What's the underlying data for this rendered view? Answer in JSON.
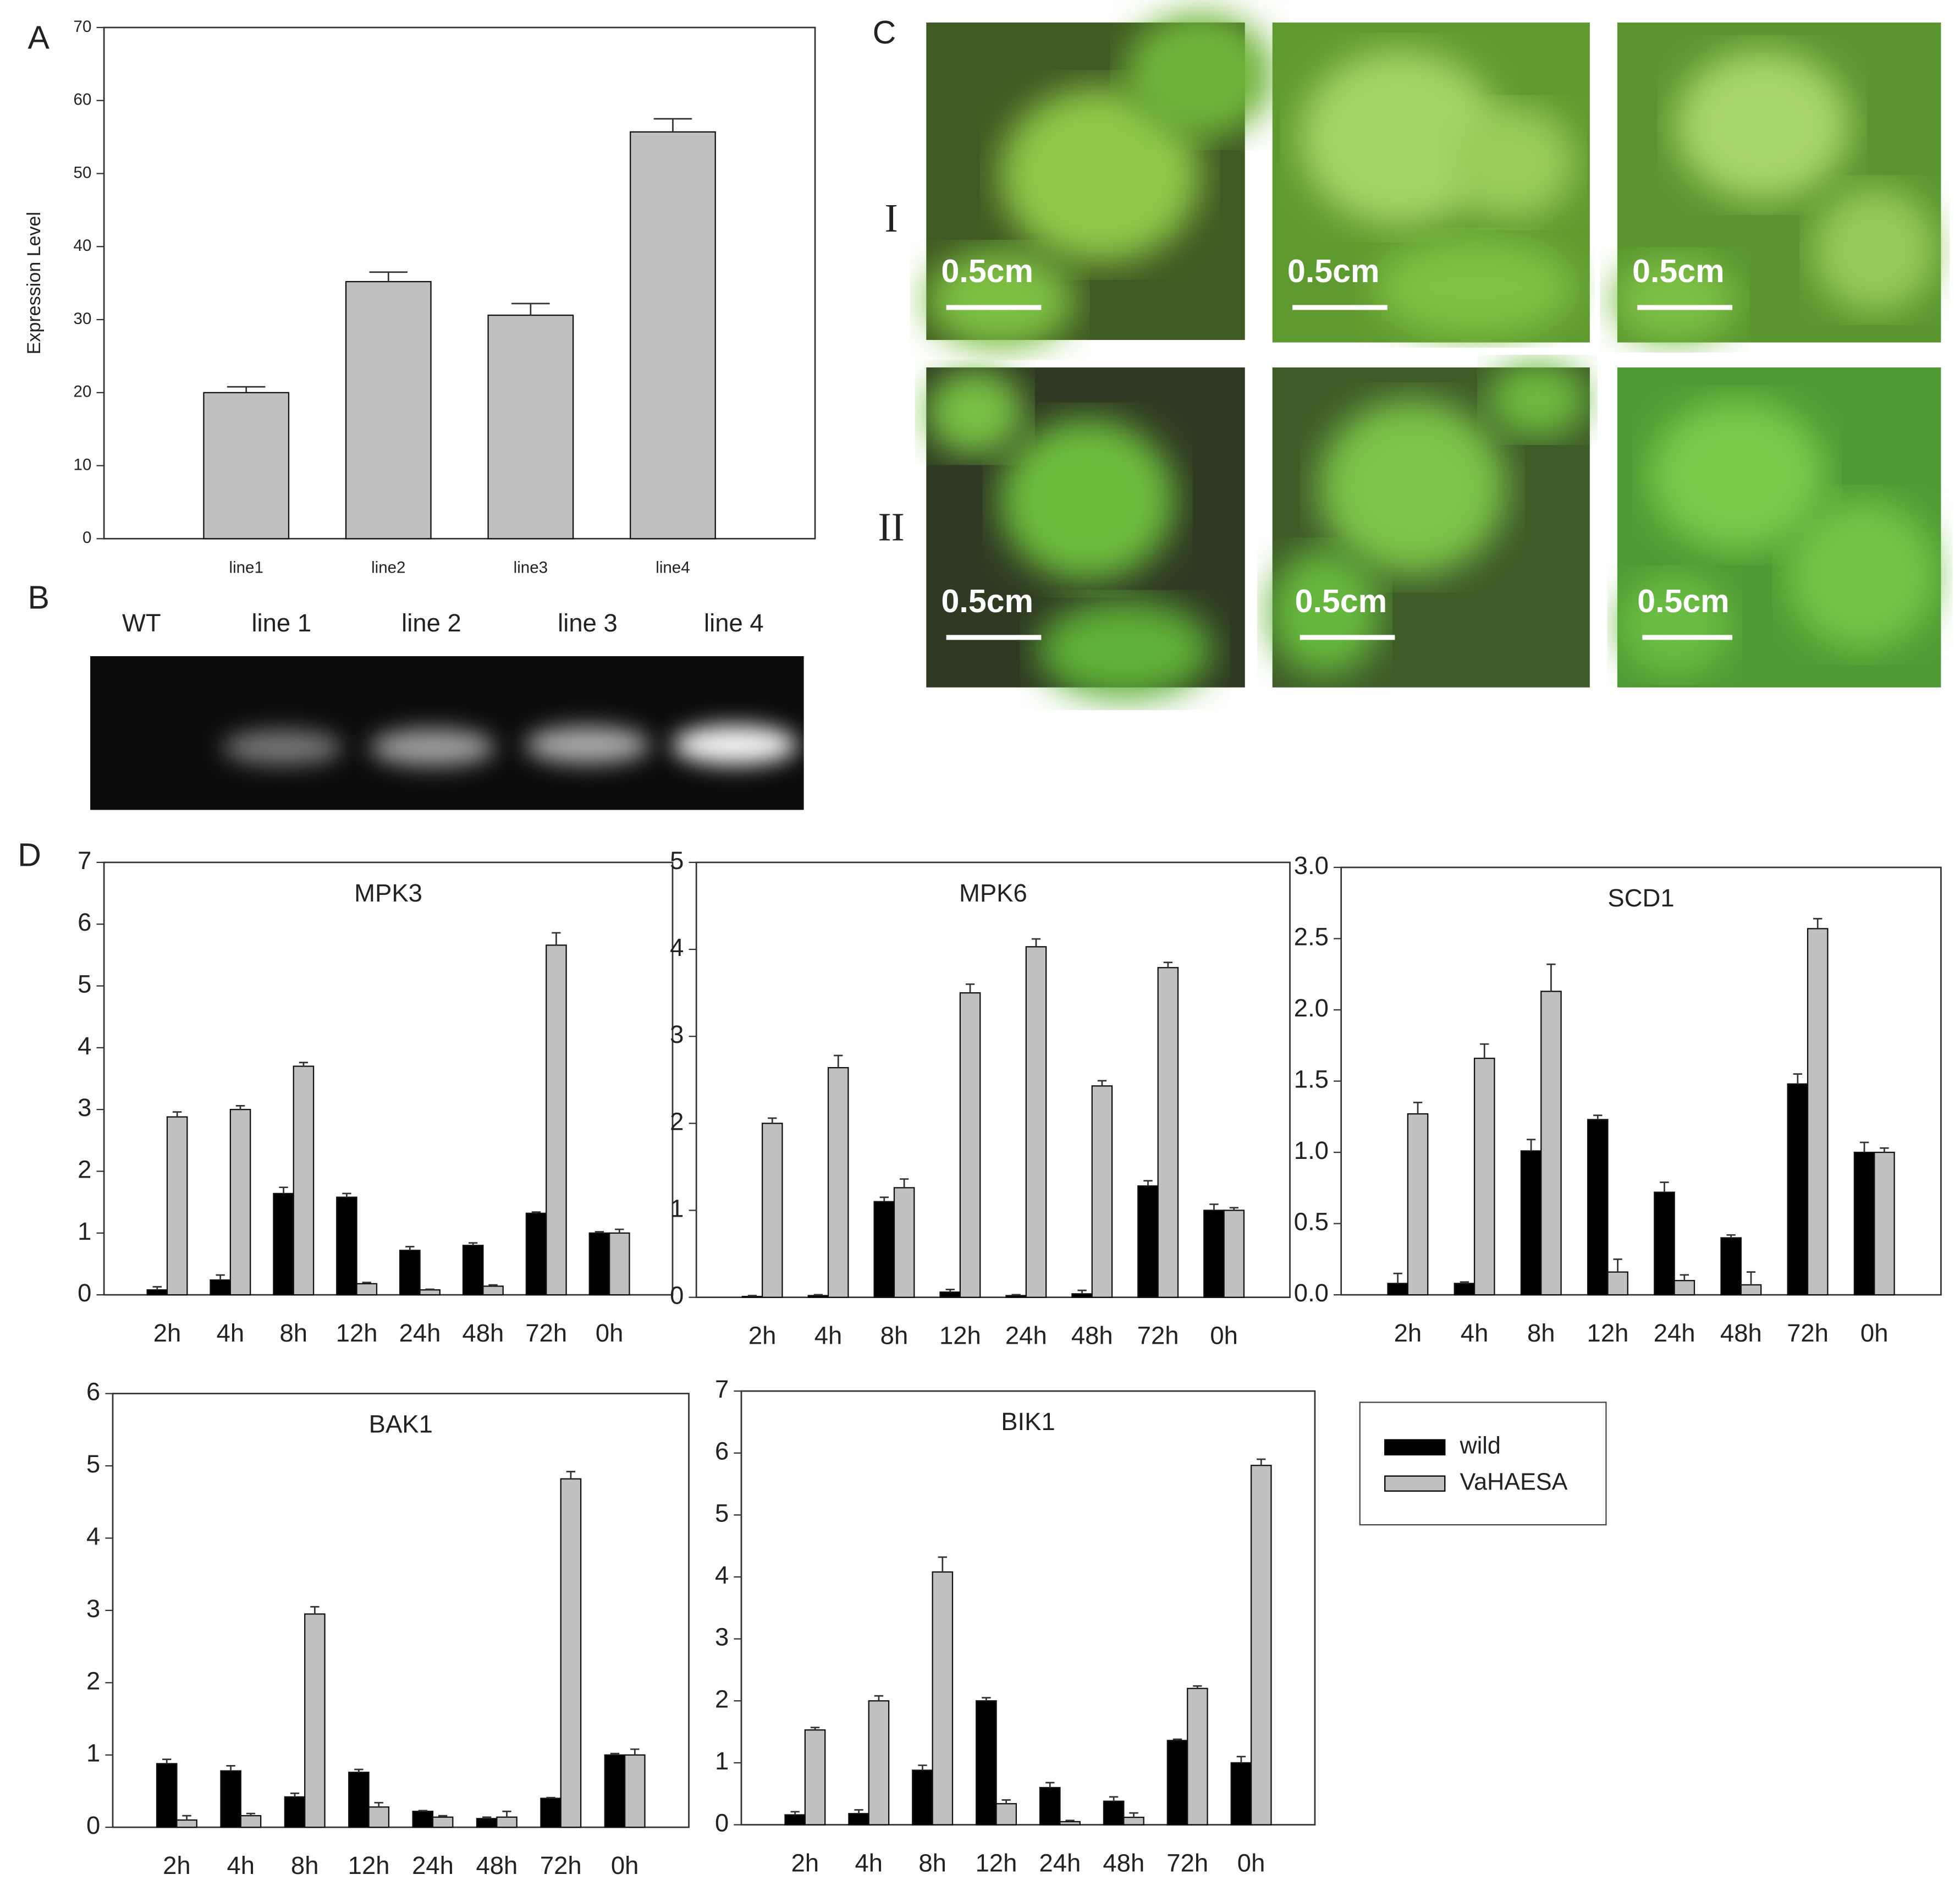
{
  "panel_labels": [
    "A",
    "B",
    "C",
    "D"
  ],
  "chart_data": [
    {
      "type": "bar",
      "ylabel": "Expression Level",
      "categories": [
        "line1",
        "line2",
        "line3",
        "line4"
      ],
      "values": [
        20,
        35.2,
        30.6,
        55.7
      ],
      "errors": [
        0.8,
        1.3,
        1.6,
        1.8
      ],
      "color": "#c0c0c0",
      "ylim": [
        0,
        70
      ],
      "yticks": [
        0,
        10,
        20,
        30,
        40,
        50,
        60,
        70
      ]
    },
    {
      "type": "bar",
      "title": "MPK3",
      "categories": [
        "2h",
        "4h",
        "8h",
        "12h",
        "24h",
        "48h",
        "72h",
        "0h"
      ],
      "series": [
        {
          "color": "#000000",
          "values": [
            0.08,
            0.24,
            1.64,
            1.58,
            0.72,
            0.8,
            1.32,
            1.0
          ],
          "errors": [
            0.05,
            0.08,
            0.1,
            0.06,
            0.06,
            0.04,
            0.02,
            0.02
          ]
        },
        {
          "color": "#c0c0c0",
          "values": [
            2.88,
            3.0,
            3.7,
            0.18,
            0.08,
            0.14,
            5.66,
            1.0
          ],
          "errors": [
            0.08,
            0.06,
            0.06,
            0.02,
            0.01,
            0.02,
            0.2,
            0.06
          ]
        }
      ],
      "ylim": [
        0,
        7
      ],
      "yticks": [
        0,
        1,
        2,
        3,
        4,
        5,
        6,
        7
      ]
    },
    {
      "type": "bar",
      "title": "MPK6",
      "categories": [
        "2h",
        "4h",
        "8h",
        "12h",
        "24h",
        "48h",
        "72h",
        "0h"
      ],
      "series": [
        {
          "color": "#000000",
          "values": [
            0.01,
            0.02,
            1.1,
            0.06,
            0.02,
            0.04,
            1.28,
            1.0
          ],
          "errors": [
            0.01,
            0.01,
            0.05,
            0.03,
            0.01,
            0.04,
            0.06,
            0.07
          ]
        },
        {
          "color": "#c0c0c0",
          "values": [
            2.0,
            2.64,
            1.26,
            3.5,
            4.03,
            2.43,
            3.79,
            1.0
          ],
          "errors": [
            0.06,
            0.14,
            0.1,
            0.1,
            0.09,
            0.06,
            0.06,
            0.03
          ]
        }
      ],
      "ylim": [
        0,
        5
      ],
      "yticks": [
        0,
        1,
        2,
        3,
        4,
        5
      ]
    },
    {
      "type": "bar",
      "title": "SCD1",
      "categories": [
        "2h",
        "4h",
        "8h",
        "12h",
        "24h",
        "48h",
        "72h",
        "0h"
      ],
      "series": [
        {
          "color": "#000000",
          "values": [
            0.08,
            0.08,
            1.01,
            1.23,
            0.72,
            0.4,
            1.48,
            1.0
          ],
          "errors": [
            0.07,
            0.01,
            0.08,
            0.03,
            0.07,
            0.02,
            0.07,
            0.07
          ]
        },
        {
          "color": "#c0c0c0",
          "values": [
            1.27,
            1.66,
            2.13,
            0.16,
            0.1,
            0.07,
            2.57,
            1.0
          ],
          "errors": [
            0.08,
            0.1,
            0.19,
            0.09,
            0.04,
            0.09,
            0.07,
            0.03
          ]
        }
      ],
      "ylim": [
        0,
        3
      ],
      "yticks": [
        {
          "value": 0,
          "label": "0.0"
        },
        0.5,
        {
          "value": 1,
          "label": "1.0"
        },
        1.5,
        {
          "value": 2,
          "label": "2.0"
        },
        2.5,
        {
          "value": 3,
          "label": "3.0"
        }
      ]
    },
    {
      "type": "bar",
      "title": "BAK1",
      "categories": [
        "2h",
        "4h",
        "8h",
        "12h",
        "24h",
        "48h",
        "72h",
        "0h"
      ],
      "series": [
        {
          "color": "#000000",
          "values": [
            0.88,
            0.78,
            0.42,
            0.76,
            0.22,
            0.12,
            0.4,
            1.0
          ],
          "errors": [
            0.06,
            0.07,
            0.05,
            0.04,
            0.01,
            0.02,
            0.01,
            0.02
          ]
        },
        {
          "color": "#c0c0c0",
          "values": [
            0.1,
            0.16,
            2.95,
            0.28,
            0.14,
            0.14,
            4.82,
            1.0
          ],
          "errors": [
            0.06,
            0.03,
            0.1,
            0.06,
            0.02,
            0.08,
            0.1,
            0.08
          ]
        }
      ],
      "ylim": [
        0,
        6
      ],
      "yticks": [
        0,
        1,
        2,
        3,
        4,
        5,
        6
      ]
    },
    {
      "type": "bar",
      "title": "BIK1",
      "categories": [
        "2h",
        "4h",
        "8h",
        "12h",
        "24h",
        "48h",
        "72h",
        "0h"
      ],
      "series": [
        {
          "name": "wild",
          "color": "#000000",
          "values": [
            0.16,
            0.18,
            0.88,
            2.0,
            0.6,
            0.38,
            1.36,
            1.0
          ],
          "errors": [
            0.05,
            0.06,
            0.08,
            0.05,
            0.08,
            0.07,
            0.02,
            0.1
          ]
        },
        {
          "name": "VaHAESA",
          "color": "#c0c0c0",
          "values": [
            1.53,
            2.0,
            4.08,
            0.34,
            0.05,
            0.12,
            2.2,
            5.8
          ],
          "errors": [
            0.04,
            0.08,
            0.24,
            0.06,
            0.02,
            0.07,
            0.04,
            0.1
          ]
        }
      ],
      "ylim": [
        0,
        7
      ],
      "yticks": [
        0,
        1,
        2,
        3,
        4,
        5,
        6,
        7
      ]
    }
  ],
  "gel": {
    "lanes": [
      "WT",
      "line 1",
      "line 2",
      "line 3",
      "line 4"
    ]
  },
  "photos": {
    "rows": [
      "I",
      "II"
    ],
    "scale_label": "0.5cm"
  }
}
